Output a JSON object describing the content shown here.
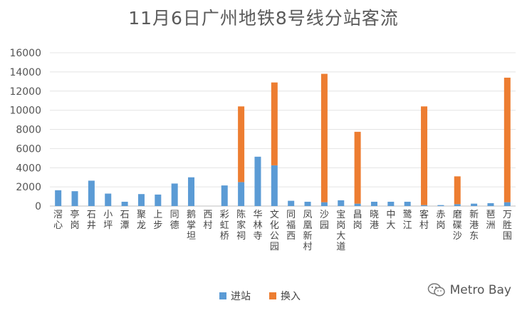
{
  "title": "11月6日广州地铁8号线分站客流",
  "chart_data": {
    "type": "bar",
    "stacked": true,
    "categories": [
      "滘心",
      "亭岗",
      "石井",
      "小坪",
      "石潭",
      "聚龙",
      "上步",
      "同德",
      "鹅掌坦",
      "西村",
      "彩虹桥",
      "陈家祠",
      "华林寺",
      "文化公园",
      "同福西",
      "凤凰新村",
      "沙园",
      "宝岗大道",
      "昌岗",
      "晓港",
      "中大",
      "鹭江",
      "客村",
      "赤岗",
      "磨碟沙",
      "新港东",
      "琶洲",
      "万胜围"
    ],
    "series": [
      {
        "name": "进站",
        "color": "#5b9bd5",
        "values": [
          1650,
          1550,
          2650,
          1300,
          450,
          1250,
          1200,
          2350,
          3000,
          0,
          2150,
          2500,
          5150,
          4250,
          550,
          450,
          400,
          600,
          250,
          450,
          450,
          450,
          100,
          100,
          200,
          250,
          300,
          400
        ]
      },
      {
        "name": "换入",
        "color": "#ed7d31",
        "values": [
          0,
          0,
          0,
          0,
          0,
          0,
          0,
          0,
          0,
          0,
          0,
          7900,
          0,
          8650,
          0,
          0,
          13400,
          0,
          7500,
          0,
          0,
          0,
          10300,
          0,
          2900,
          0,
          0,
          13000
        ]
      }
    ],
    "yticks": [
      0,
      2000,
      4000,
      6000,
      8000,
      10000,
      12000,
      14000,
      16000
    ],
    "ylim": [
      0,
      16000
    ],
    "grid": true,
    "legend_position": "bottom"
  },
  "watermark": "Metro Bay"
}
